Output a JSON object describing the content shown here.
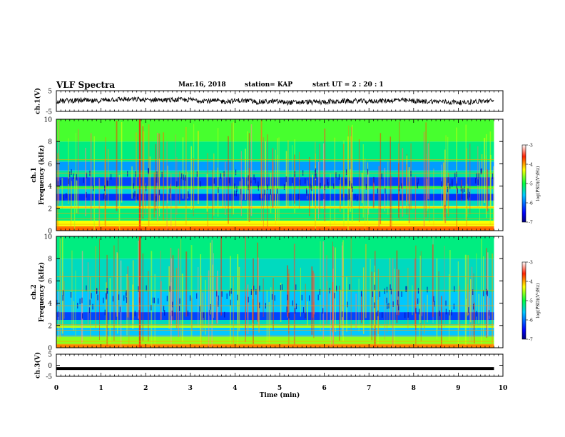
{
  "header": {
    "title": "VLF Spectra",
    "date": "Mar.16, 2018",
    "station": "station= KAP",
    "start_ut": "start  UT =   2 : 20 : 1"
  },
  "chart_data": [
    {
      "id": "ch1v",
      "type": "line",
      "ylabel": "ch.1(V)",
      "ylim": [
        -5,
        5
      ],
      "yticks": [
        -5,
        5
      ],
      "x_range_min": [
        0,
        9.8
      ],
      "description_level": "noisy waveform around 0 V, amplitude about ±2 V"
    },
    {
      "id": "ch1",
      "type": "heatmap",
      "ylabel": "ch.1\nFrequency  (kHz)",
      "ylim": [
        0,
        10
      ],
      "yticks": [
        0,
        2,
        4,
        6,
        8,
        10
      ],
      "x_range_min": [
        0,
        9.8
      ],
      "colorbar": {
        "label": "log(PSD)(V²/Hz)",
        "range": [
          -7,
          -3
        ],
        "ticks": [
          -3,
          -4,
          -5,
          -6,
          -7
        ]
      },
      "bands_khz": [
        {
          "from": 0.0,
          "to": 0.4,
          "level": -3.8
        },
        {
          "from": 0.4,
          "to": 0.9,
          "level": -4.3
        },
        {
          "from": 0.9,
          "to": 2.0,
          "level": -5.2
        },
        {
          "from": 2.0,
          "to": 2.2,
          "level": -4.3
        },
        {
          "from": 2.2,
          "to": 2.7,
          "level": -5.4
        },
        {
          "from": 2.7,
          "to": 3.3,
          "level": -6.3
        },
        {
          "from": 3.3,
          "to": 3.8,
          "level": -5.5
        },
        {
          "from": 3.8,
          "to": 4.0,
          "level": -4.9
        },
        {
          "from": 4.0,
          "to": 4.8,
          "level": -6.2
        },
        {
          "from": 4.8,
          "to": 5.4,
          "level": -5.3
        },
        {
          "from": 5.4,
          "to": 6.2,
          "level": -5.8
        },
        {
          "from": 6.2,
          "to": 8.0,
          "level": -5.2
        },
        {
          "from": 8.0,
          "to": 10.0,
          "level": -4.8
        }
      ]
    },
    {
      "id": "ch2",
      "type": "heatmap",
      "ylabel": "ch.2\nFrequency  (kHz)",
      "ylim": [
        0,
        10
      ],
      "yticks": [
        0,
        2,
        4,
        6,
        8,
        10
      ],
      "x_range_min": [
        0,
        9.8
      ],
      "colorbar": {
        "label": "log(PSD)(V²/Hz)",
        "range": [
          -7,
          -3
        ],
        "ticks": [
          -3,
          -4,
          -5,
          -6,
          -7
        ]
      },
      "bands_khz": [
        {
          "from": 0.0,
          "to": 0.3,
          "level": -3.9
        },
        {
          "from": 0.3,
          "to": 1.0,
          "level": -4.6
        },
        {
          "from": 1.0,
          "to": 1.8,
          "level": -5.6
        },
        {
          "from": 1.8,
          "to": 2.0,
          "level": -4.5
        },
        {
          "from": 2.0,
          "to": 2.5,
          "level": -5.4
        },
        {
          "from": 2.5,
          "to": 3.2,
          "level": -6.2
        },
        {
          "from": 3.2,
          "to": 5.0,
          "level": -5.6
        },
        {
          "from": 5.0,
          "to": 8.0,
          "level": -5.4
        },
        {
          "from": 8.0,
          "to": 10.0,
          "level": -5.2
        }
      ]
    },
    {
      "id": "ch3v",
      "type": "line",
      "ylabel": "ch.3(V)",
      "ylim": [
        -5,
        5
      ],
      "yticks": [
        -5,
        0,
        5
      ],
      "x_range_min": [
        0,
        9.8
      ],
      "constant_value": -1.5
    }
  ],
  "x_axis": {
    "label": "Time  (min)",
    "xlim": [
      0,
      10
    ],
    "ticks": [
      0,
      1,
      2,
      3,
      4,
      5,
      6,
      7,
      8,
      9,
      10
    ]
  }
}
